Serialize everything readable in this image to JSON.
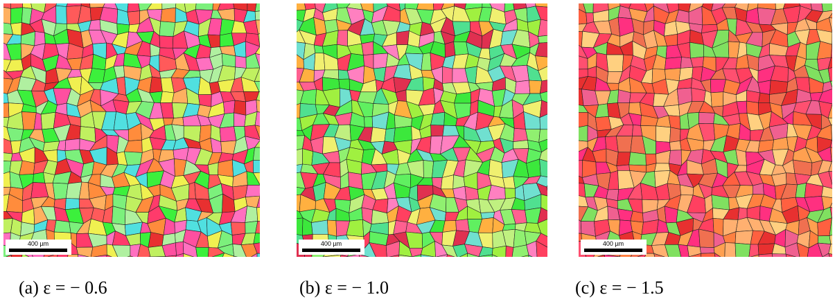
{
  "panels": [
    {
      "scale_bar": "400 µm",
      "caption": "(a) ε = − 0.6"
    },
    {
      "scale_bar": "400 µm",
      "caption": "(b) ε = − 1.0"
    },
    {
      "scale_bar": "400 µm",
      "caption": "(c) ε = − 1.5"
    }
  ]
}
